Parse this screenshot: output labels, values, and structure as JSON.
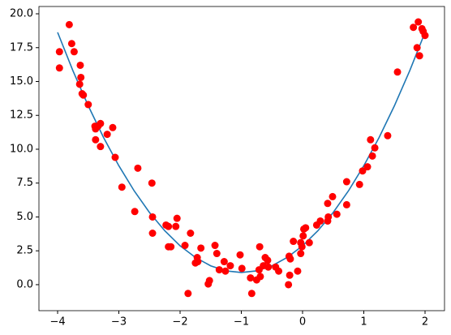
{
  "chart_data": {
    "type": "scatter",
    "xlim": [
      -4.305,
      2.318
    ],
    "ylim": [
      -1.92,
      20.54
    ],
    "xticks": [
      {
        "value": -4,
        "label": "−4"
      },
      {
        "value": -3,
        "label": "−3"
      },
      {
        "value": -2,
        "label": "−2"
      },
      {
        "value": -1,
        "label": "−1"
      },
      0,
      1,
      2
    ],
    "yticks": [
      {
        "value": 0,
        "label": "0.0"
      },
      {
        "value": 2.5,
        "label": "2.5"
      },
      {
        "value": 5,
        "label": "5.0"
      },
      {
        "value": 7.5,
        "label": "7.5"
      },
      {
        "value": 10,
        "label": "10.0"
      },
      {
        "value": 12.5,
        "label": "12.5"
      },
      {
        "value": 15,
        "label": "15.0"
      },
      {
        "value": 17.5,
        "label": "17.5"
      },
      {
        "value": 20,
        "label": "20.0"
      }
    ],
    "series": [
      {
        "type": "line",
        "color": "#1f77b4",
        "x": [
          -4,
          -3.75,
          -3.5,
          -3.25,
          -3,
          -2.75,
          -2.5,
          -2.25,
          -2,
          -1.75,
          -1.5,
          -1.25,
          -1,
          -0.75,
          -0.5,
          -0.25,
          0,
          0.25,
          0.5,
          0.75,
          1,
          1.25,
          1.5,
          1.75,
          2
        ],
        "values": [
          18.63,
          15.8,
          13.21,
          10.87,
          8.78,
          6.93,
          5.33,
          3.98,
          2.87,
          2.01,
          1.39,
          1.02,
          0.9,
          1.02,
          1.39,
          2.01,
          2.87,
          3.98,
          5.33,
          6.93,
          8.78,
          10.87,
          13.21,
          15.8,
          18.63
        ]
      },
      {
        "type": "scatter",
        "color": "#ff0000",
        "x": [
          -3.97,
          -3.97,
          -3.81,
          -3.77,
          -3.73,
          -3.63,
          -3.64,
          -3.62,
          -3.6,
          -3.58,
          -3.5,
          -3.39,
          -3.38,
          -3.34,
          -3.3,
          -3.38,
          -3.3,
          -3.19,
          -3.1,
          -3.06,
          -2.95,
          -2.74,
          -2.69,
          -2.46,
          -2.45,
          -2.45,
          -2.23,
          -2.19,
          -2.19,
          -2.15,
          -2.07,
          -2.05,
          -1.92,
          -1.87,
          -1.83,
          -1.75,
          -1.72,
          -1.71,
          -1.66,
          -1.54,
          -1.52,
          -1.43,
          -1.4,
          -1.36,
          -1.28,
          -1.26,
          -1.18,
          -1.02,
          -0.99,
          -0.85,
          -0.83,
          -0.75,
          -0.71,
          -0.7,
          -0.69,
          -0.64,
          -0.61,
          -0.57,
          -0.56,
          -0.44,
          -0.39,
          -0.23,
          -0.22,
          -0.21,
          -0.2,
          -0.15,
          -0.08,
          -0.03,
          -0.03,
          -0.01,
          0.01,
          0.02,
          0.05,
          0.11,
          0.23,
          0.29,
          0.41,
          0.41,
          0.42,
          0.49,
          0.56,
          0.72,
          0.72,
          0.93,
          0.98,
          1.06,
          1.11,
          1.14,
          1.18,
          1.39,
          1.55,
          1.81,
          1.87,
          1.89,
          1.91,
          1.95,
          1.97,
          2.0
        ],
        "values": [
          17.2,
          16.0,
          19.2,
          17.8,
          17.2,
          16.2,
          14.8,
          15.3,
          14.1,
          14.0,
          13.3,
          11.7,
          11.5,
          11.7,
          11.9,
          10.7,
          10.2,
          11.1,
          11.6,
          9.4,
          7.2,
          5.4,
          8.6,
          7.5,
          5.0,
          3.8,
          4.4,
          4.3,
          2.8,
          2.8,
          4.3,
          4.9,
          2.9,
          -0.65,
          3.8,
          1.6,
          2.0,
          1.7,
          2.7,
          0.05,
          0.3,
          2.9,
          2.3,
          1.1,
          1.7,
          1.0,
          1.4,
          2.2,
          1.2,
          0.5,
          -0.65,
          0.35,
          1.1,
          2.8,
          0.6,
          1.4,
          2.0,
          1.8,
          1.3,
          1.3,
          1.0,
          0.0,
          2.1,
          0.7,
          1.9,
          3.2,
          1.0,
          3.1,
          2.3,
          2.8,
          3.6,
          4.1,
          4.2,
          3.1,
          4.4,
          4.7,
          4.7,
          6.0,
          5.0,
          6.5,
          5.2,
          5.9,
          7.6,
          7.4,
          8.4,
          8.7,
          10.7,
          9.5,
          10.1,
          11.0,
          15.7,
          19.0,
          17.5,
          19.4,
          16.9,
          18.9,
          18.7,
          18.4
        ]
      }
    ]
  }
}
